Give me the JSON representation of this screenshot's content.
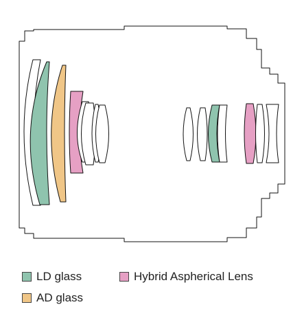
{
  "colors": {
    "ld": "#8fc4ae",
    "ad": "#f0c687",
    "hybrid": "#e6a0c4",
    "outline": "#111111"
  },
  "legend": {
    "ld_label": "LD glass",
    "ad_label": "AD glass",
    "hybrid_label": "Hybrid Aspherical Lens"
  }
}
